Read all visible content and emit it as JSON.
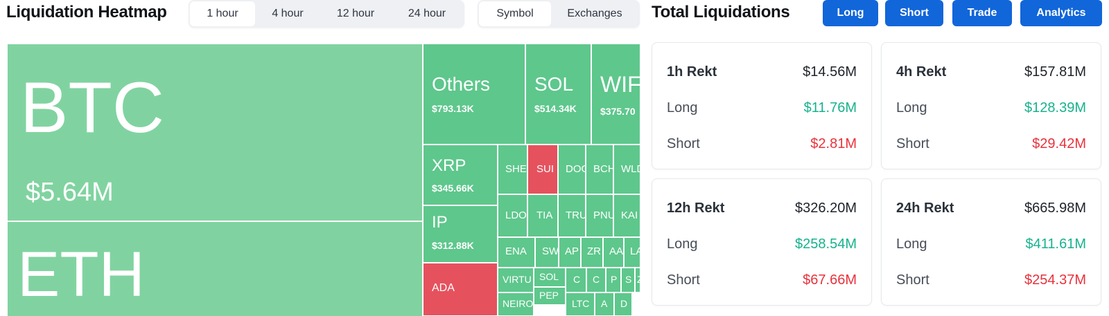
{
  "header": {
    "title": "Liquidation Heatmap",
    "time_tabs": [
      "1 hour",
      "4 hour",
      "12 hour",
      "24 hour"
    ],
    "active_time_tab": "1 hour",
    "group_tabs": [
      "Symbol",
      "Exchanges"
    ],
    "active_group_tab": "Symbol"
  },
  "total": {
    "title": "Total Liquidations",
    "buttons": [
      "Long",
      "Short",
      "Trade",
      "Analytics"
    ],
    "button_color": "#1166d9"
  },
  "colors": {
    "long_dominant": "#5ec78c",
    "long_light": "#80d3a0",
    "short_dominant": "#e5525e",
    "long_text": "#16b28e",
    "short_text": "#e8323c"
  },
  "heatmap": [
    {
      "symbol": "BTC",
      "value": "$5.64M",
      "color": "light"
    },
    {
      "symbol": "ETH",
      "value": "",
      "color": "light"
    },
    {
      "symbol": "Others",
      "value": "$793.13K",
      "color": "green"
    },
    {
      "symbol": "SOL",
      "value": "$514.34K",
      "color": "green"
    },
    {
      "symbol": "WIF",
      "value": "$375.70",
      "color": "green"
    },
    {
      "symbol": "XRP",
      "value": "$345.66K",
      "color": "green"
    },
    {
      "symbol": "IP",
      "value": "$312.88K",
      "color": "green"
    },
    {
      "symbol": "ADA",
      "value": "",
      "color": "red"
    },
    {
      "symbol": "SHE",
      "value": "",
      "color": "green"
    },
    {
      "symbol": "SUI",
      "value": "",
      "color": "red"
    },
    {
      "symbol": "DOG",
      "value": "",
      "color": "green"
    },
    {
      "symbol": "BCH",
      "value": "",
      "color": "green"
    },
    {
      "symbol": "WLD",
      "value": "",
      "color": "green"
    },
    {
      "symbol": "LDO",
      "value": "",
      "color": "green"
    },
    {
      "symbol": "TIA",
      "value": "",
      "color": "green"
    },
    {
      "symbol": "TRU",
      "value": "",
      "color": "green"
    },
    {
      "symbol": "PNU",
      "value": "",
      "color": "green"
    },
    {
      "symbol": "KAI",
      "value": "",
      "color": "green"
    },
    {
      "symbol": "ENA",
      "value": "",
      "color": "green"
    },
    {
      "symbol": "SW",
      "value": "",
      "color": "green"
    },
    {
      "symbol": "AP",
      "value": "",
      "color": "green"
    },
    {
      "symbol": "ZR",
      "value": "",
      "color": "green"
    },
    {
      "symbol": "AA",
      "value": "",
      "color": "green"
    },
    {
      "symbol": "LA",
      "value": "",
      "color": "green"
    },
    {
      "symbol": "VIRTU",
      "value": "",
      "color": "green"
    },
    {
      "symbol": "SOL",
      "value": "",
      "color": "green"
    },
    {
      "symbol": "C",
      "value": "",
      "color": "green"
    },
    {
      "symbol": "C",
      "value": "",
      "color": "green"
    },
    {
      "symbol": "P",
      "value": "",
      "color": "green"
    },
    {
      "symbol": "S",
      "value": "",
      "color": "green"
    },
    {
      "symbol": "Z",
      "value": "",
      "color": "green"
    },
    {
      "symbol": "PEP",
      "value": "",
      "color": "green"
    },
    {
      "symbol": "NEIRO",
      "value": "",
      "color": "green"
    },
    {
      "symbol": "LTC",
      "value": "",
      "color": "green"
    },
    {
      "symbol": "A",
      "value": "",
      "color": "green"
    },
    {
      "symbol": "D",
      "value": "",
      "color": "green"
    }
  ],
  "cards": [
    {
      "label": "1h Rekt",
      "total": "$14.56M",
      "long_label": "Long",
      "long": "$11.76M",
      "short_label": "Short",
      "short": "$2.81M"
    },
    {
      "label": "4h Rekt",
      "total": "$157.81M",
      "long_label": "Long",
      "long": "$128.39M",
      "short_label": "Short",
      "short": "$29.42M"
    },
    {
      "label": "12h Rekt",
      "total": "$326.20M",
      "long_label": "Long",
      "long": "$258.54M",
      "short_label": "Short",
      "short": "$67.66M"
    },
    {
      "label": "24h Rekt",
      "total": "$665.98M",
      "long_label": "Long",
      "long": "$411.61M",
      "short_label": "Short",
      "short": "$254.37M"
    }
  ]
}
